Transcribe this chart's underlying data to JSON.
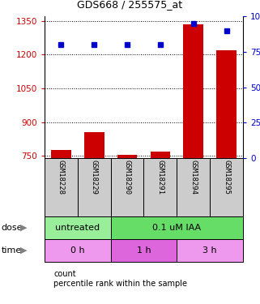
{
  "title": "GDS668 / 255575_at",
  "samples": [
    "GSM18228",
    "GSM18229",
    "GSM18290",
    "GSM18291",
    "GSM18294",
    "GSM18295"
  ],
  "count_values": [
    775,
    855,
    755,
    768,
    1335,
    1220
  ],
  "percentile_values": [
    80,
    80,
    80,
    80,
    95,
    90
  ],
  "ylim_left": [
    740,
    1370
  ],
  "ylim_right": [
    0,
    100
  ],
  "yticks_left": [
    750,
    900,
    1050,
    1200,
    1350
  ],
  "yticks_right": [
    0,
    25,
    50,
    75,
    100
  ],
  "ytick_labels_right": [
    "0",
    "25",
    "50",
    "75",
    "100%"
  ],
  "bar_color": "#cc0000",
  "dot_color": "#0000cc",
  "dose_labels": [
    {
      "text": "untreated",
      "start": 0,
      "end": 2,
      "color": "#99ee99"
    },
    {
      "text": "0.1 uM IAA",
      "start": 2,
      "end": 6,
      "color": "#66dd66"
    }
  ],
  "time_labels": [
    {
      "text": "0 h",
      "start": 0,
      "end": 2,
      "color": "#ee99ee"
    },
    {
      "text": "1 h",
      "start": 2,
      "end": 4,
      "color": "#dd66dd"
    },
    {
      "text": "3 h",
      "start": 4,
      "end": 6,
      "color": "#ee99ee"
    }
  ],
  "dose_arrow_label": "dose",
  "time_arrow_label": "time",
  "grid_color": "#000000",
  "background_color": "#ffffff",
  "sample_box_color": "#cccccc",
  "legend_count_color": "#cc0000",
  "legend_pct_color": "#0000cc",
  "legend_count_label": "count",
  "legend_pct_label": "percentile rank within the sample"
}
